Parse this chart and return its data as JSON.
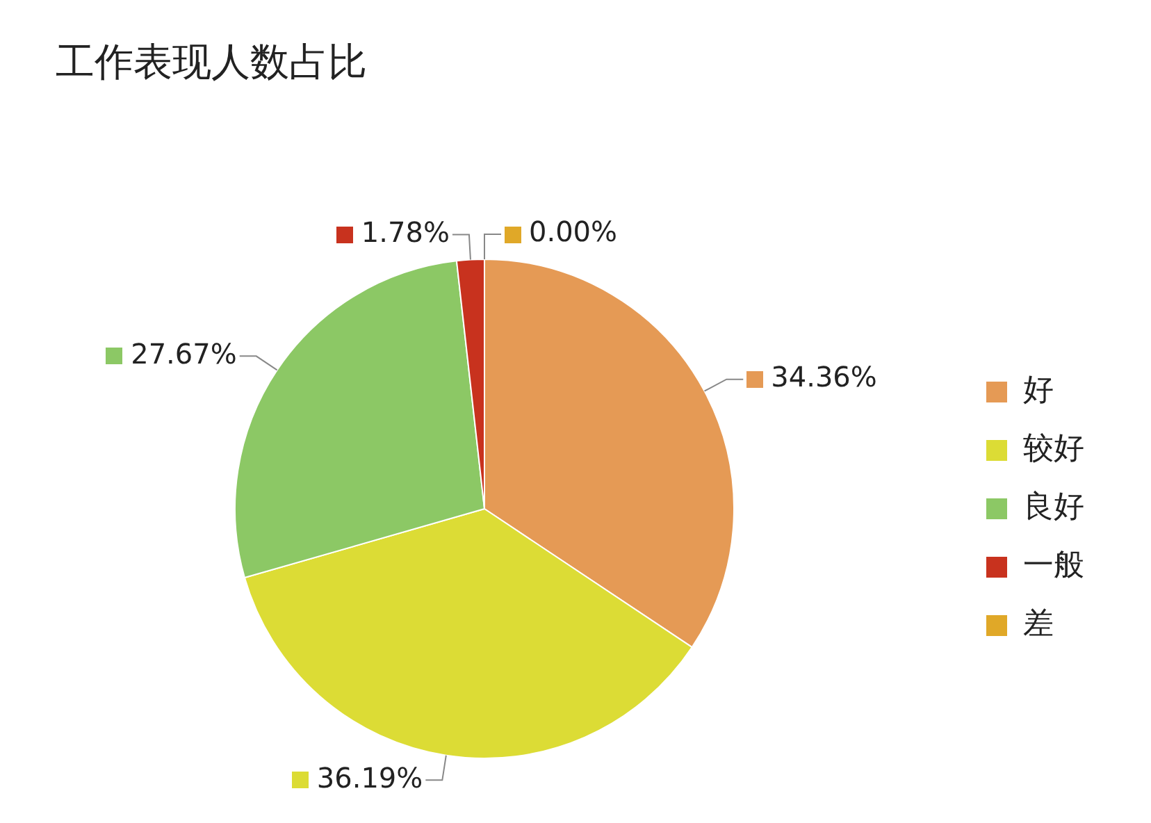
{
  "chart_data": {
    "type": "pie",
    "title": "工作表现人数占比",
    "categories": [
      "好",
      "较好",
      "良好",
      "一般",
      "差"
    ],
    "values": [
      34.36,
      36.19,
      27.67,
      1.78,
      0.0
    ],
    "colors": [
      "#e59a55",
      "#dcdc35",
      "#8cc865",
      "#c8321e",
      "#e0a828"
    ],
    "value_labels": [
      "34.36%",
      "36.19%",
      "27.67%",
      "1.78%",
      "0.00%"
    ],
    "legend": "right"
  }
}
